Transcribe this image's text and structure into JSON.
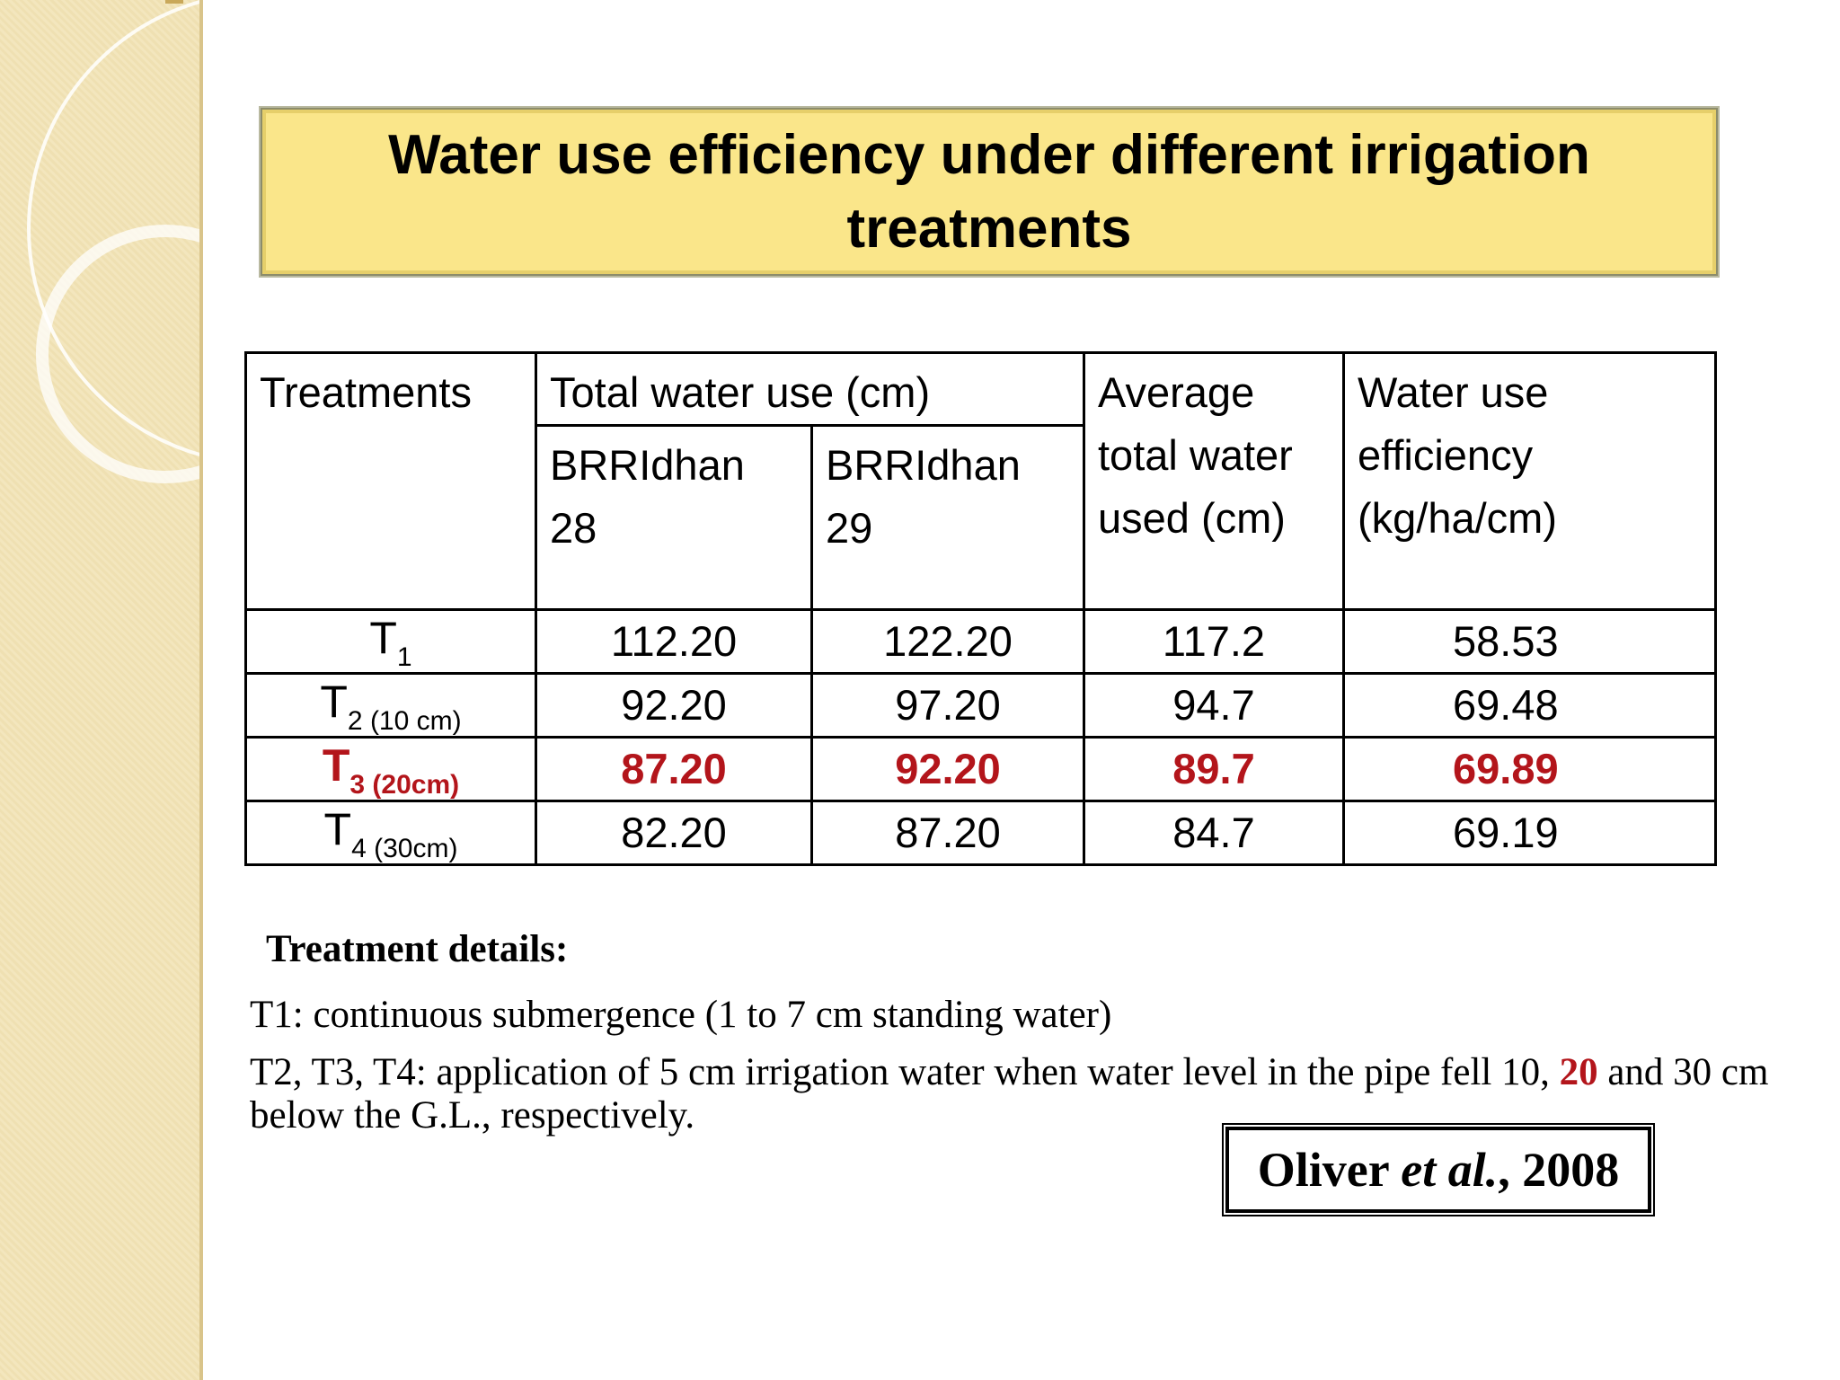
{
  "title": "Water use efficiency under different irrigation treatments",
  "table": {
    "headers": {
      "treatments": "Treatments",
      "total_water": "Total water use (cm)",
      "brri28": "BRRIdhan 28",
      "brri29": "BRRIdhan 29",
      "average": "Average total water used (cm)",
      "wue": "Water use efficiency (kg/ha/cm)"
    },
    "rows": [
      {
        "treatment": "T",
        "sub": "1",
        "brri28": "112.20",
        "brri29": "122.20",
        "average": "117.2",
        "wue": "58.53"
      },
      {
        "treatment": "T",
        "sub": "2  (10 cm)",
        "brri28": "92.20",
        "brri29": "97.20",
        "average": "94.7",
        "wue": "69.48"
      },
      {
        "treatment": "T",
        "sub": "3  (20cm)",
        "brri28": "87.20",
        "brri29": "92.20",
        "average": "89.7",
        "wue": "69.89"
      },
      {
        "treatment": "T",
        "sub": "4 (30cm)",
        "brri28": "82.20",
        "brri29": "87.20",
        "average": "84.7",
        "wue": "69.19"
      }
    ]
  },
  "details": {
    "heading": "Treatment details:",
    "t1": "T1: continuous submergence (1 to 7 cm standing water)",
    "t234_before": "T2, T3, T4: application of 5 cm irrigation water when water level in the pipe fell 10, ",
    "t234_highlight": "20",
    "t234_after": " and 30 cm below the G.L., respectively."
  },
  "citation": {
    "author": "Oliver ",
    "etal": "et al.",
    "year": ", 2008"
  },
  "colors": {
    "title_bg": "#fae68a",
    "highlight_red": "#b3151b",
    "side_strip": "#f3e6bd"
  }
}
